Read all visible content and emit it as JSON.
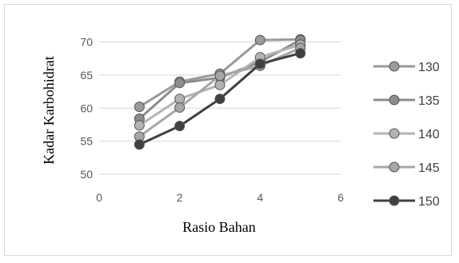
{
  "chart_data": {
    "type": "line",
    "title": "",
    "xlabel": "Rasio Bahan",
    "ylabel": "Kadar Karbohidrat",
    "xlim": [
      0,
      6
    ],
    "ylim": [
      50,
      72
    ],
    "xticks": [
      0,
      2,
      4,
      6
    ],
    "yticks": [
      50,
      55,
      60,
      65,
      70
    ],
    "grid": "horizontal",
    "legend_position": "right",
    "x": [
      1,
      2,
      3,
      4,
      5
    ],
    "series": [
      {
        "name": "130",
        "values": [
          60.2,
          64.0,
          65.2,
          70.3,
          70.4
        ],
        "color": "#9a9a9a"
      },
      {
        "name": "135",
        "values": [
          58.4,
          63.8,
          64.6,
          67.0,
          70.3
        ],
        "color": "#8c8c8c"
      },
      {
        "name": "140",
        "values": [
          57.4,
          61.4,
          63.5,
          67.7,
          69.6
        ],
        "color": "#b3b3b3"
      },
      {
        "name": "145",
        "values": [
          55.7,
          60.1,
          64.9,
          66.4,
          69.1
        ],
        "color": "#a6a6a6"
      },
      {
        "name": "150",
        "values": [
          54.5,
          57.3,
          61.4,
          66.7,
          68.3
        ],
        "color": "#404040"
      }
    ]
  }
}
